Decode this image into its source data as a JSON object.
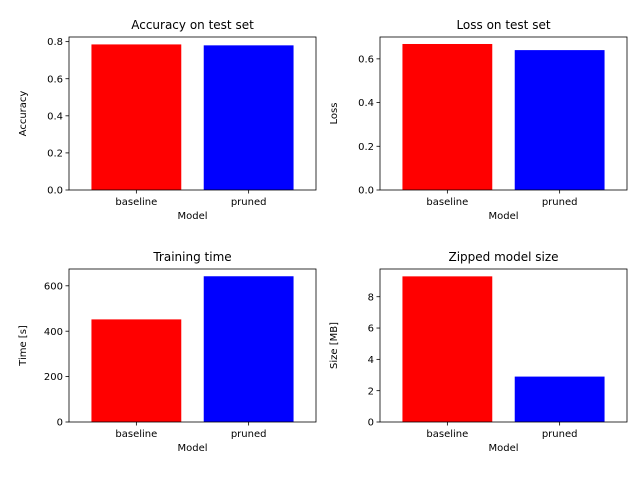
{
  "chart_data": [
    {
      "type": "bar",
      "title": "Accuracy on test set",
      "xlabel": "Model",
      "ylabel": "Accuracy",
      "categories": [
        "baseline",
        "pruned"
      ],
      "values": [
        0.785,
        0.78
      ],
      "colors": [
        "#ff0000",
        "#0000ff"
      ],
      "ylim": [
        0,
        0.825
      ],
      "yticks": [
        "0.0",
        "0.2",
        "0.4",
        "0.6",
        "0.8"
      ],
      "ytick_values": [
        0,
        0.2,
        0.4,
        0.6,
        0.8
      ],
      "grid": false,
      "legend": "none"
    },
    {
      "type": "bar",
      "title": "Loss on test set",
      "xlabel": "Model",
      "ylabel": "Loss",
      "categories": [
        "baseline",
        "pruned"
      ],
      "values": [
        0.668,
        0.64
      ],
      "colors": [
        "#ff0000",
        "#0000ff"
      ],
      "ylim": [
        0,
        0.7
      ],
      "yticks": [
        "0.0",
        "0.2",
        "0.4",
        "0.6"
      ],
      "ytick_values": [
        0,
        0.2,
        0.4,
        0.6
      ],
      "grid": false,
      "legend": "none"
    },
    {
      "type": "bar",
      "title": "Training time",
      "xlabel": "Model",
      "ylabel": "Time [s]",
      "categories": [
        "baseline",
        "pruned"
      ],
      "values": [
        452,
        642
      ],
      "colors": [
        "#ff0000",
        "#0000ff"
      ],
      "ylim": [
        0,
        674
      ],
      "yticks": [
        "0",
        "200",
        "400",
        "600"
      ],
      "ytick_values": [
        0,
        200,
        400,
        600
      ],
      "grid": false,
      "legend": "none"
    },
    {
      "type": "bar",
      "title": "Zipped model size",
      "xlabel": "Model",
      "ylabel": "Size [MB]",
      "categories": [
        "baseline",
        "pruned"
      ],
      "values": [
        9.3,
        2.9
      ],
      "colors": [
        "#ff0000",
        "#0000ff"
      ],
      "ylim": [
        0,
        9.77
      ],
      "yticks": [
        "0",
        "2",
        "4",
        "6",
        "8"
      ],
      "ytick_values": [
        0,
        2,
        4,
        6,
        8
      ],
      "grid": false,
      "legend": "none"
    }
  ]
}
